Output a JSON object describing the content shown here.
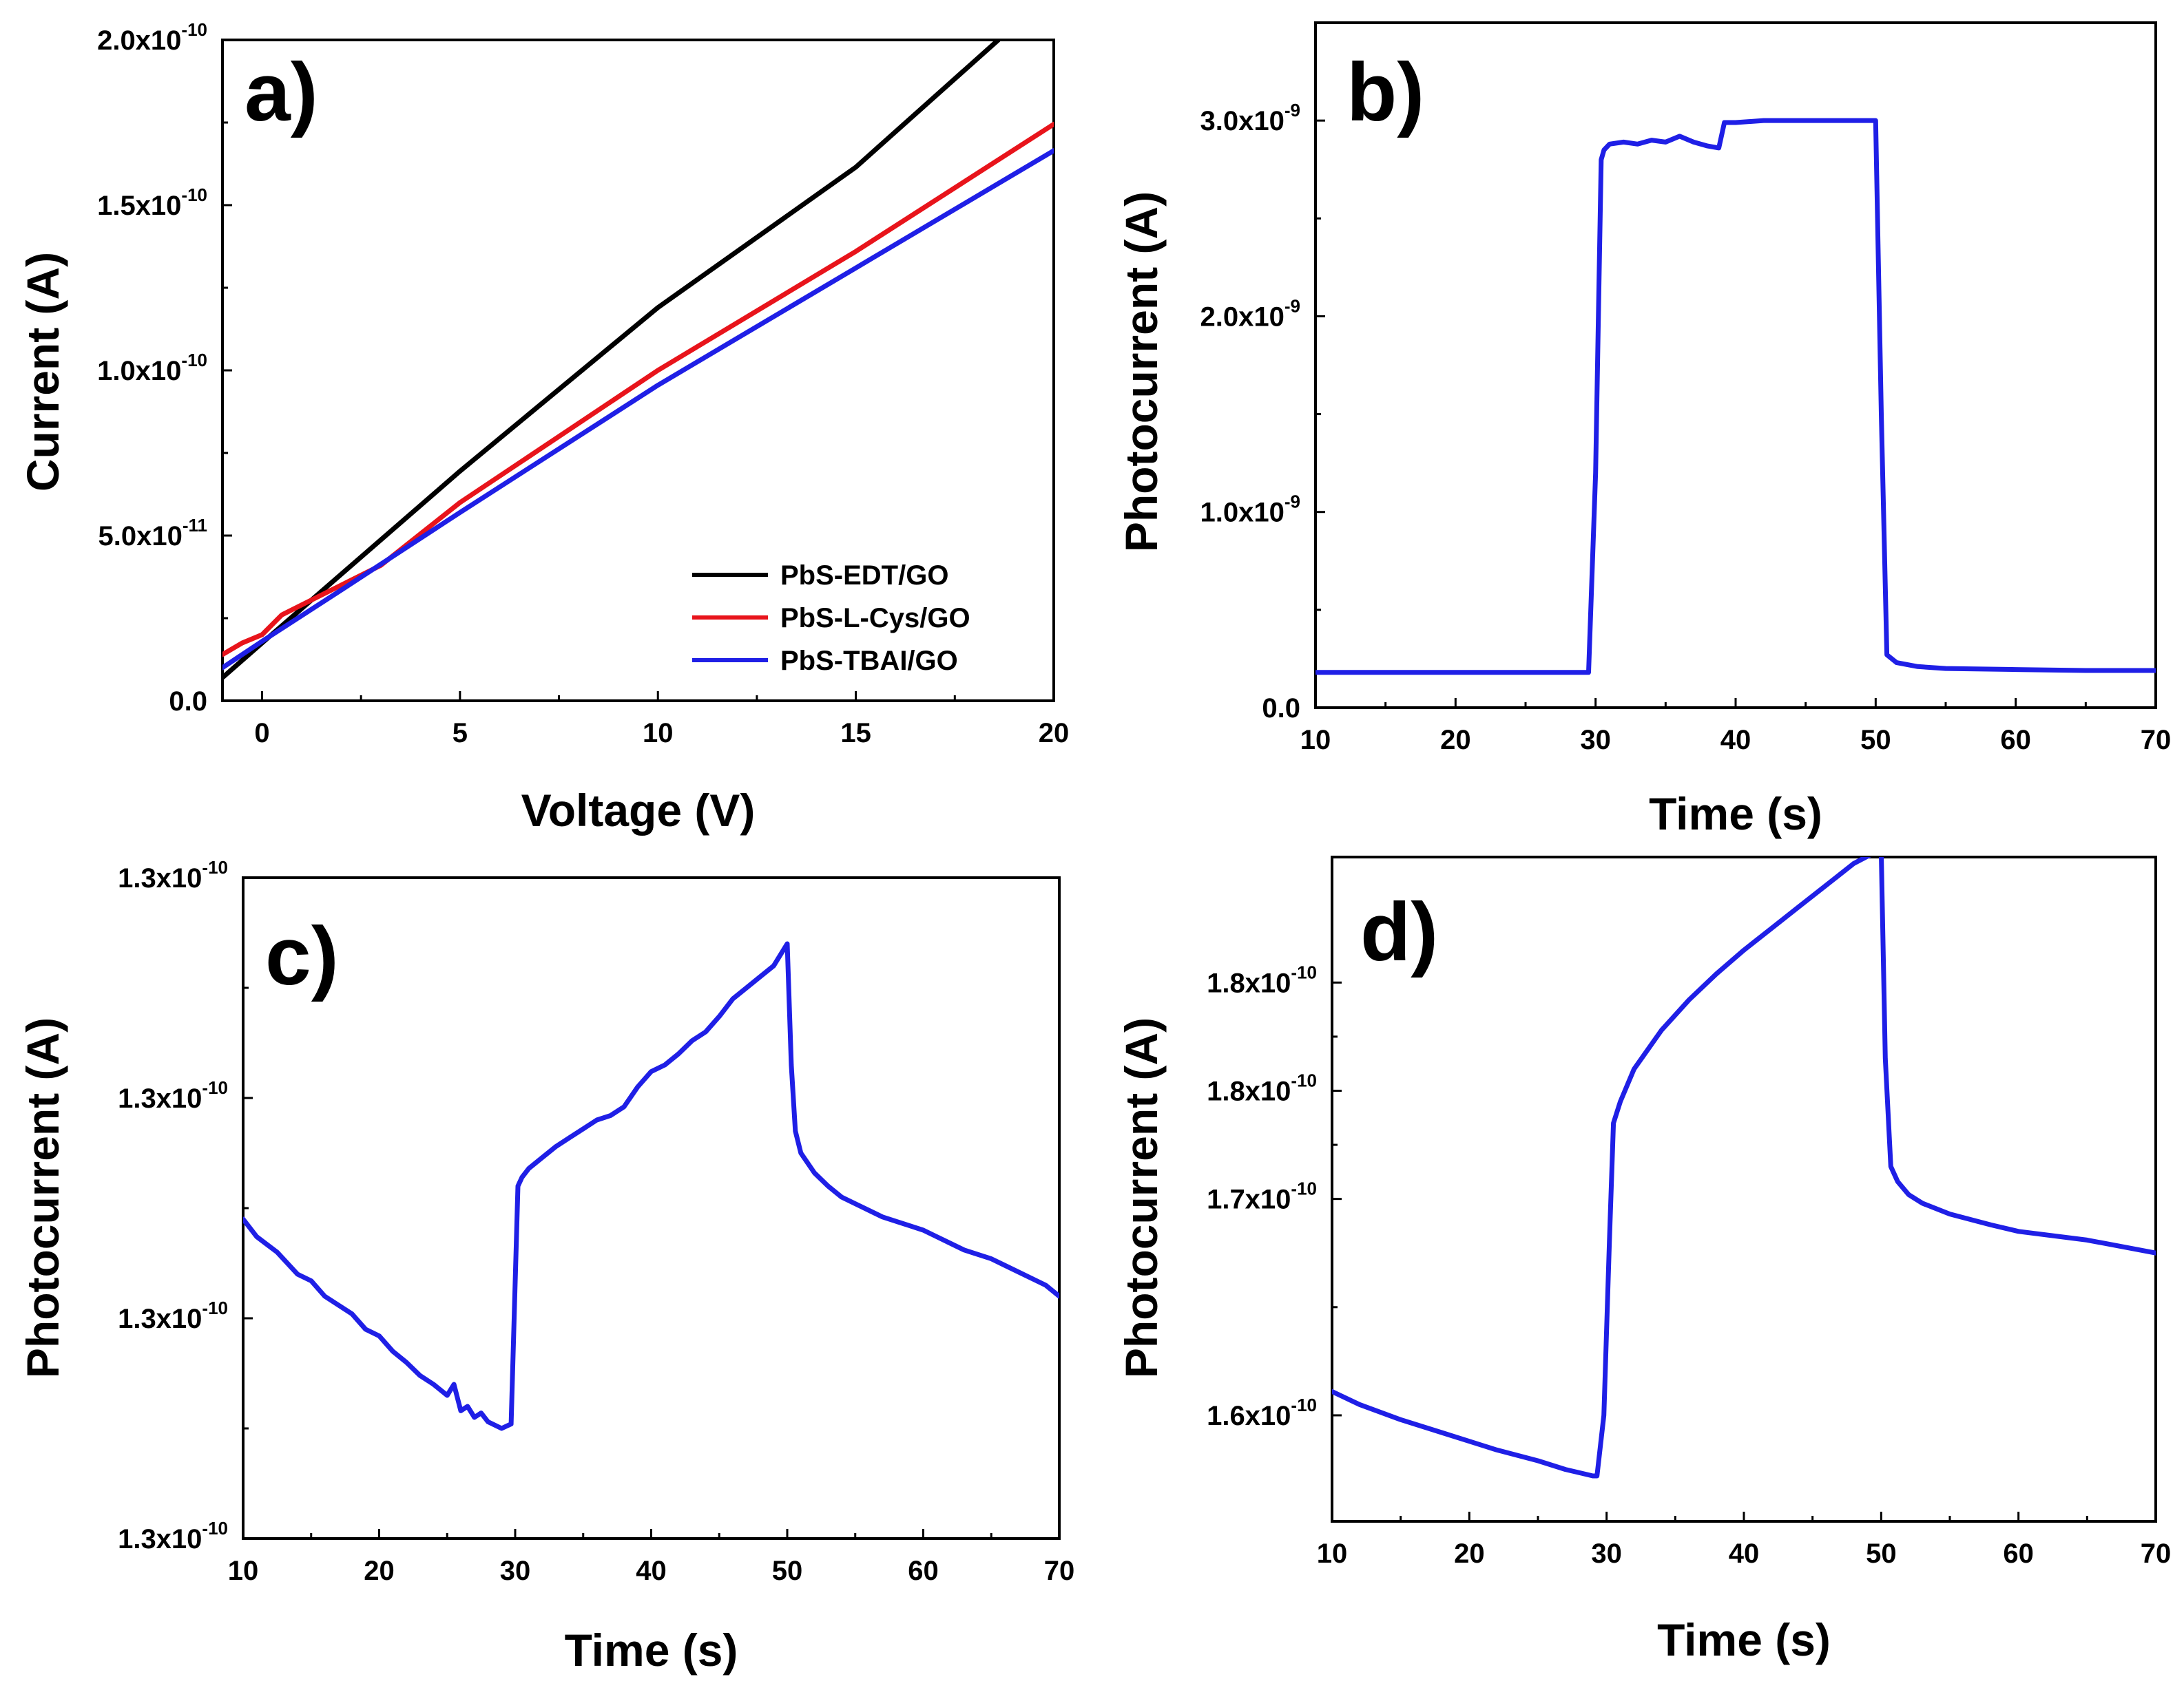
{
  "figure": {
    "colors": {
      "black": "#000000",
      "red": "#e8141b",
      "blue": "#1f1fe6"
    }
  },
  "chart_data": [
    {
      "panel": "a)",
      "type": "line",
      "xlabel": "Voltage (V)",
      "ylabel": "Current (A)",
      "xlim": [
        -1,
        20
      ],
      "ylim": [
        0,
        2e-10
      ],
      "xticks": [
        0,
        5,
        10,
        15,
        20
      ],
      "xtick_labels": [
        "0",
        "5",
        "10",
        "15",
        "20"
      ],
      "yticks": [
        0,
        5e-11,
        1e-10,
        1.5e-10,
        2e-10
      ],
      "ytick_labels": [
        {
          "text": "0.0",
          "exp": ""
        },
        {
          "text": "5.0x10",
          "exp": "-11"
        },
        {
          "text": "1.0x10",
          "exp": "-10"
        },
        {
          "text": "1.5x10",
          "exp": "-10"
        },
        {
          "text": "2.0x10",
          "exp": "-10"
        }
      ],
      "legend_position": "bottom-right",
      "series": [
        {
          "name": "PbS-EDT/GO",
          "color": "#000000",
          "x": [
            -1,
            0,
            5,
            10,
            15,
            18.6
          ],
          "y": [
            7e-12,
            1.75e-11,
            6.95e-11,
            1.19e-10,
            1.615e-10,
            2e-10
          ]
        },
        {
          "name": "PbS-L-Cys/GO",
          "color": "#e8141b",
          "x": [
            -1,
            -0.5,
            0,
            0.5,
            1,
            2,
            3,
            5,
            10,
            15,
            20
          ],
          "y": [
            1.4e-11,
            1.75e-11,
            2e-11,
            2.6e-11,
            2.9e-11,
            3.5e-11,
            4.1e-11,
            6e-11,
            1e-10,
            1.36e-10,
            1.745e-10
          ]
        },
        {
          "name": "PbS-TBAI/GO",
          "color": "#1f1fe6",
          "x": [
            -1,
            -0.5,
            0,
            2,
            5,
            10,
            15,
            20
          ],
          "y": [
            1e-11,
            1.4e-11,
            1.8e-11,
            3.35e-11,
            5.7e-11,
            9.55e-11,
            1.31e-10,
            1.665e-10
          ]
        }
      ]
    },
    {
      "panel": "b)",
      "type": "line",
      "xlabel": "Time (s)",
      "ylabel": "Photocurrent (A)",
      "xlim": [
        10,
        70
      ],
      "ylim": [
        0,
        3.5e-09
      ],
      "xticks": [
        10,
        20,
        30,
        40,
        50,
        60,
        70
      ],
      "xtick_labels": [
        "10",
        "20",
        "30",
        "40",
        "50",
        "60",
        "70"
      ],
      "yticks": [
        0,
        1e-09,
        2e-09,
        3e-09
      ],
      "ytick_labels": [
        {
          "text": "0.0",
          "exp": ""
        },
        {
          "text": "1.0x10",
          "exp": "-9"
        },
        {
          "text": "2.0x10",
          "exp": "-9"
        },
        {
          "text": "3.0x10",
          "exp": "-9"
        }
      ],
      "series": [
        {
          "name": "photocurrent",
          "color": "#1f1fe6",
          "x": [
            10,
            29.5,
            30.0,
            30.4,
            30.6,
            31,
            32,
            33,
            34,
            35,
            36,
            37,
            38,
            38.8,
            39.2,
            40,
            42,
            45,
            48,
            50.0,
            50.4,
            50.8,
            51.5,
            53,
            55,
            60,
            65,
            70
          ],
          "y": [
            1.8e-10,
            1.8e-10,
            1.2e-09,
            2.8e-09,
            2.85e-09,
            2.88e-09,
            2.89e-09,
            2.88e-09,
            2.9e-09,
            2.89e-09,
            2.92e-09,
            2.89e-09,
            2.87e-09,
            2.86e-09,
            2.99e-09,
            2.99e-09,
            3e-09,
            3e-09,
            3e-09,
            3e-09,
            1.5e-09,
            2.7e-10,
            2.3e-10,
            2.1e-10,
            2e-10,
            1.95e-10,
            1.9e-10,
            1.9e-10
          ]
        }
      ]
    },
    {
      "panel": "c)",
      "type": "line",
      "xlabel": "Time (s)",
      "ylabel": "Photocurrent (A)",
      "xlim": [
        10,
        70
      ],
      "ylim": [
        0,
        3
      ],
      "y_units_note": "relative tick positions; printed tick labels all read 1.3x10^-10",
      "xticks": [
        10,
        20,
        30,
        40,
        50,
        60,
        70
      ],
      "xtick_labels": [
        "10",
        "20",
        "30",
        "40",
        "50",
        "60",
        "70"
      ],
      "yticks": [
        0,
        1,
        2,
        3
      ],
      "ytick_labels": [
        {
          "text": "1.3x10",
          "exp": "-10"
        },
        {
          "text": "1.3x10",
          "exp": "-10"
        },
        {
          "text": "1.3x10",
          "exp": "-10"
        },
        {
          "text": "1.3x10",
          "exp": "-10"
        }
      ],
      "series": [
        {
          "name": "photocurrent",
          "color": "#1f1fe6",
          "x": [
            10,
            11,
            12.5,
            14,
            15,
            16,
            18,
            19,
            20,
            21,
            22,
            23,
            24,
            25,
            25.5,
            26,
            26.5,
            27,
            27.5,
            28,
            29,
            29.7,
            30.2,
            30.5,
            31,
            32,
            33,
            34,
            35,
            36,
            37,
            38,
            39,
            40,
            41,
            42,
            43,
            44,
            45,
            46,
            47,
            48,
            49,
            50.0,
            50.3,
            50.6,
            51,
            52,
            53,
            54,
            55,
            56,
            57,
            58,
            59,
            60,
            61,
            62,
            63,
            64,
            65,
            66,
            67,
            68,
            69,
            70
          ],
          "y": [
            1.45,
            1.37,
            1.3,
            1.2,
            1.17,
            1.1,
            1.02,
            0.95,
            0.92,
            0.85,
            0.8,
            0.74,
            0.7,
            0.65,
            0.7,
            0.58,
            0.6,
            0.55,
            0.57,
            0.53,
            0.5,
            0.52,
            1.6,
            1.64,
            1.68,
            1.73,
            1.78,
            1.82,
            1.86,
            1.9,
            1.92,
            1.96,
            2.05,
            2.12,
            2.15,
            2.2,
            2.26,
            2.3,
            2.37,
            2.45,
            2.5,
            2.55,
            2.6,
            2.7,
            2.15,
            1.85,
            1.75,
            1.66,
            1.6,
            1.55,
            1.52,
            1.49,
            1.46,
            1.44,
            1.42,
            1.4,
            1.37,
            1.34,
            1.31,
            1.29,
            1.27,
            1.24,
            1.21,
            1.18,
            1.15,
            1.1
          ]
        }
      ]
    },
    {
      "panel": "d)",
      "type": "line",
      "xlabel": "Time (s)",
      "ylabel": "Photocurrent (A)",
      "xlim": [
        10,
        70
      ],
      "ylim": [
        1.551,
        1.858
      ],
      "y_units_note": "x10^-10 A, values scaled from printed tick positions",
      "xticks": [
        10,
        20,
        30,
        40,
        50,
        60,
        70
      ],
      "xtick_labels": [
        "10",
        "20",
        "30",
        "40",
        "50",
        "60",
        "70"
      ],
      "yticks": [
        1.6,
        1.7,
        1.75,
        1.8
      ],
      "ytick_labels": [
        {
          "text": "1.6x10",
          "exp": "-10"
        },
        {
          "text": "1.7x10",
          "exp": "-10"
        },
        {
          "text": "1.8x10",
          "exp": "-10"
        },
        {
          "text": "1.8x10",
          "exp": "-10"
        }
      ],
      "series": [
        {
          "name": "photocurrent",
          "color": "#1f1fe6",
          "x": [
            10,
            12,
            15,
            18,
            20,
            22,
            25,
            27,
            29.0,
            29.3,
            29.8,
            30.2,
            30.5,
            31,
            32,
            34,
            36,
            38,
            40,
            42,
            44,
            46,
            48,
            49.5,
            50.0,
            50.3,
            50.7,
            51.2,
            52,
            53,
            55,
            58,
            60,
            65,
            70
          ],
          "y": [
            1.611,
            1.605,
            1.598,
            1.592,
            1.588,
            1.584,
            1.579,
            1.575,
            1.572,
            1.572,
            1.6,
            1.68,
            1.735,
            1.745,
            1.76,
            1.778,
            1.792,
            1.804,
            1.815,
            1.825,
            1.835,
            1.845,
            1.855,
            1.86,
            1.862,
            1.765,
            1.715,
            1.708,
            1.702,
            1.698,
            1.693,
            1.688,
            1.685,
            1.681,
            1.675
          ]
        }
      ]
    }
  ]
}
